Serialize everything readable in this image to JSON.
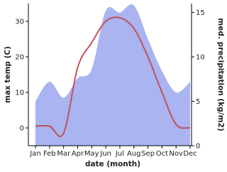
{
  "chart_data": {
    "type": "line-area",
    "categories": [
      "Jan",
      "Feb",
      "Mar",
      "Apr",
      "May",
      "Jun",
      "Jul",
      "Aug",
      "Sep",
      "Oct",
      "Nov",
      "Dec"
    ],
    "x_label": "date (month)",
    "y_label": "max temp (C)",
    "y2_label": "med. precipitation (kg/m2)",
    "series": [
      {
        "name": "max temp",
        "type": "line",
        "color": "#c0525b",
        "values": [
          0.5,
          0.5,
          -1.5,
          17,
          24,
          30,
          31,
          28,
          20,
          10,
          1,
          0
        ]
      },
      {
        "name": "med. precipitation",
        "type": "area",
        "axis": "y2",
        "color": "#a9b4f0",
        "values": [
          5,
          7.2,
          5.4,
          7.6,
          8.6,
          15.2,
          15,
          15.8,
          12,
          8.4,
          6,
          7.2
        ]
      }
    ],
    "ylim": [
      -5,
      35
    ],
    "yticks": [
      0,
      10,
      20,
      30
    ],
    "y2lim": [
      0,
      16
    ],
    "y2ticks": [
      0,
      5,
      10,
      15
    ]
  }
}
